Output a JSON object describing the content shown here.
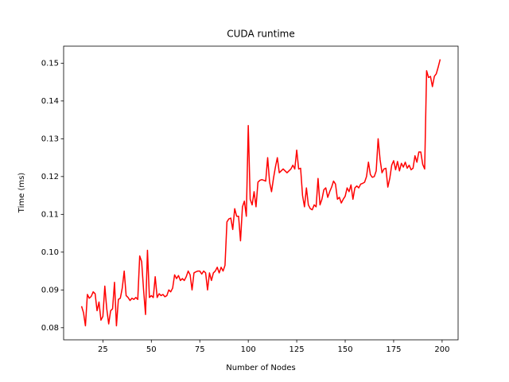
{
  "chart_data": {
    "type": "line",
    "title": "CUDA runtime",
    "xlabel": "Number of Nodes",
    "ylabel": "Time (ms)",
    "color": "#ff0000",
    "x": [
      14,
      15,
      16,
      17,
      18,
      19,
      20,
      21,
      22,
      23,
      24,
      25,
      26,
      27,
      28,
      29,
      30,
      31,
      32,
      33,
      34,
      35,
      36,
      37,
      38,
      39,
      40,
      41,
      42,
      43,
      44,
      45,
      46,
      47,
      48,
      49,
      50,
      51,
      52,
      53,
      54,
      55,
      56,
      57,
      58,
      59,
      60,
      61,
      62,
      63,
      64,
      65,
      66,
      67,
      68,
      69,
      70,
      71,
      72,
      73,
      74,
      75,
      76,
      77,
      78,
      79,
      80,
      81,
      82,
      83,
      84,
      85,
      86,
      87,
      88,
      89,
      90,
      91,
      92,
      93,
      94,
      95,
      96,
      97,
      98,
      99,
      100,
      101,
      102,
      103,
      104,
      105,
      106,
      107,
      108,
      109,
      110,
      111,
      112,
      113,
      114,
      115,
      116,
      117,
      118,
      119,
      120,
      121,
      122,
      123,
      124,
      125,
      126,
      127,
      128,
      129,
      130,
      131,
      132,
      133,
      134,
      135,
      136,
      137,
      138,
      139,
      140,
      141,
      142,
      143,
      144,
      145,
      146,
      147,
      148,
      149,
      150,
      151,
      152,
      153,
      154,
      155,
      156,
      157,
      158,
      159,
      160,
      161,
      162,
      163,
      164,
      165,
      166,
      167,
      168,
      169,
      170,
      171,
      172,
      173,
      174,
      175,
      176,
      177,
      178,
      179,
      180,
      181,
      182,
      183,
      184,
      185,
      186,
      187,
      188,
      189,
      190,
      191,
      192,
      193,
      194,
      195,
      196,
      197,
      198,
      199
    ],
    "values": [
      0.0857,
      0.084,
      0.0805,
      0.0888,
      0.0878,
      0.0883,
      0.0895,
      0.089,
      0.0845,
      0.0868,
      0.082,
      0.083,
      0.091,
      0.085,
      0.081,
      0.0845,
      0.085,
      0.092,
      0.0805,
      0.0875,
      0.0878,
      0.0905,
      0.095,
      0.0885,
      0.088,
      0.0872,
      0.0878,
      0.0875,
      0.088,
      0.0875,
      0.099,
      0.0975,
      0.09,
      0.0835,
      0.1005,
      0.088,
      0.0885,
      0.088,
      0.0935,
      0.088,
      0.089,
      0.0885,
      0.0888,
      0.0882,
      0.0885,
      0.09,
      0.0895,
      0.0905,
      0.094,
      0.093,
      0.0938,
      0.0925,
      0.093,
      0.0925,
      0.0935,
      0.095,
      0.094,
      0.09,
      0.0945,
      0.0948,
      0.095,
      0.095,
      0.0942,
      0.095,
      0.0945,
      0.09,
      0.0945,
      0.0925,
      0.0945,
      0.095,
      0.096,
      0.0945,
      0.096,
      0.095,
      0.0965,
      0.108,
      0.1088,
      0.109,
      0.106,
      0.1115,
      0.1095,
      0.1095,
      0.103,
      0.112,
      0.1135,
      0.1095,
      0.1335,
      0.114,
      0.1125,
      0.116,
      0.112,
      0.1185,
      0.119,
      0.1192,
      0.119,
      0.1188,
      0.125,
      0.1185,
      0.116,
      0.1195,
      0.1225,
      0.125,
      0.121,
      0.1215,
      0.122,
      0.1215,
      0.121,
      0.1215,
      0.122,
      0.123,
      0.122,
      0.127,
      0.122,
      0.1222,
      0.115,
      0.112,
      0.117,
      0.1125,
      0.1115,
      0.1112,
      0.1125,
      0.112,
      0.1195,
      0.1125,
      0.114,
      0.1165,
      0.117,
      0.1145,
      0.116,
      0.1172,
      0.1188,
      0.118,
      0.114,
      0.1145,
      0.113,
      0.114,
      0.1148,
      0.117,
      0.116,
      0.1178,
      0.114,
      0.117,
      0.1175,
      0.117,
      0.118,
      0.1182,
      0.1185,
      0.12,
      0.1238,
      0.1205,
      0.1198,
      0.12,
      0.1215,
      0.13,
      0.1245,
      0.121,
      0.122,
      0.1222,
      0.1172,
      0.1195,
      0.123,
      0.1242,
      0.1218,
      0.124,
      0.1215,
      0.1235,
      0.1225,
      0.1238,
      0.1222,
      0.123,
      0.1218,
      0.1222,
      0.1255,
      0.1238,
      0.1265,
      0.1265,
      0.1232,
      0.122,
      0.148,
      0.1462,
      0.1465,
      0.1438,
      0.1465,
      0.1472,
      0.149,
      0.151
    ],
    "xlim": [
      4.75,
      208.25
    ],
    "xticks": [
      25,
      50,
      75,
      100,
      125,
      150,
      175,
      200
    ],
    "ylim": [
      0.0768,
      0.1545
    ],
    "yticks": [
      0.08,
      0.09,
      {
        "value": 0.1,
        "label": "0.10"
      },
      0.11,
      0.12,
      0.13,
      0.14,
      0.15
    ]
  }
}
